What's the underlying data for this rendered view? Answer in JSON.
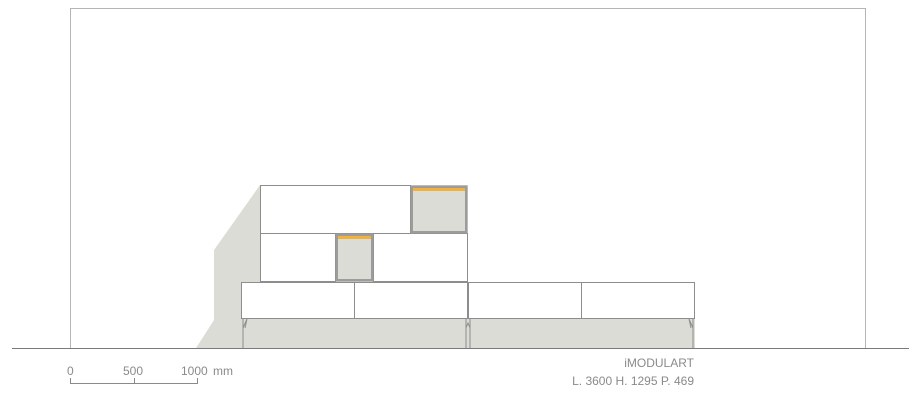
{
  "scale_bar": {
    "ticks": [
      "0",
      "500",
      "1000"
    ],
    "unit": "mm"
  },
  "product": {
    "name": "iMODULART",
    "dimensions": "L. 3600 H. 1295 P. 469"
  },
  "colors": {
    "line": "#9a9a9a",
    "shadow": "#dcdcd6",
    "led_light": "#f2b23a",
    "text": "#8a8a8a",
    "background": "#ffffff"
  }
}
